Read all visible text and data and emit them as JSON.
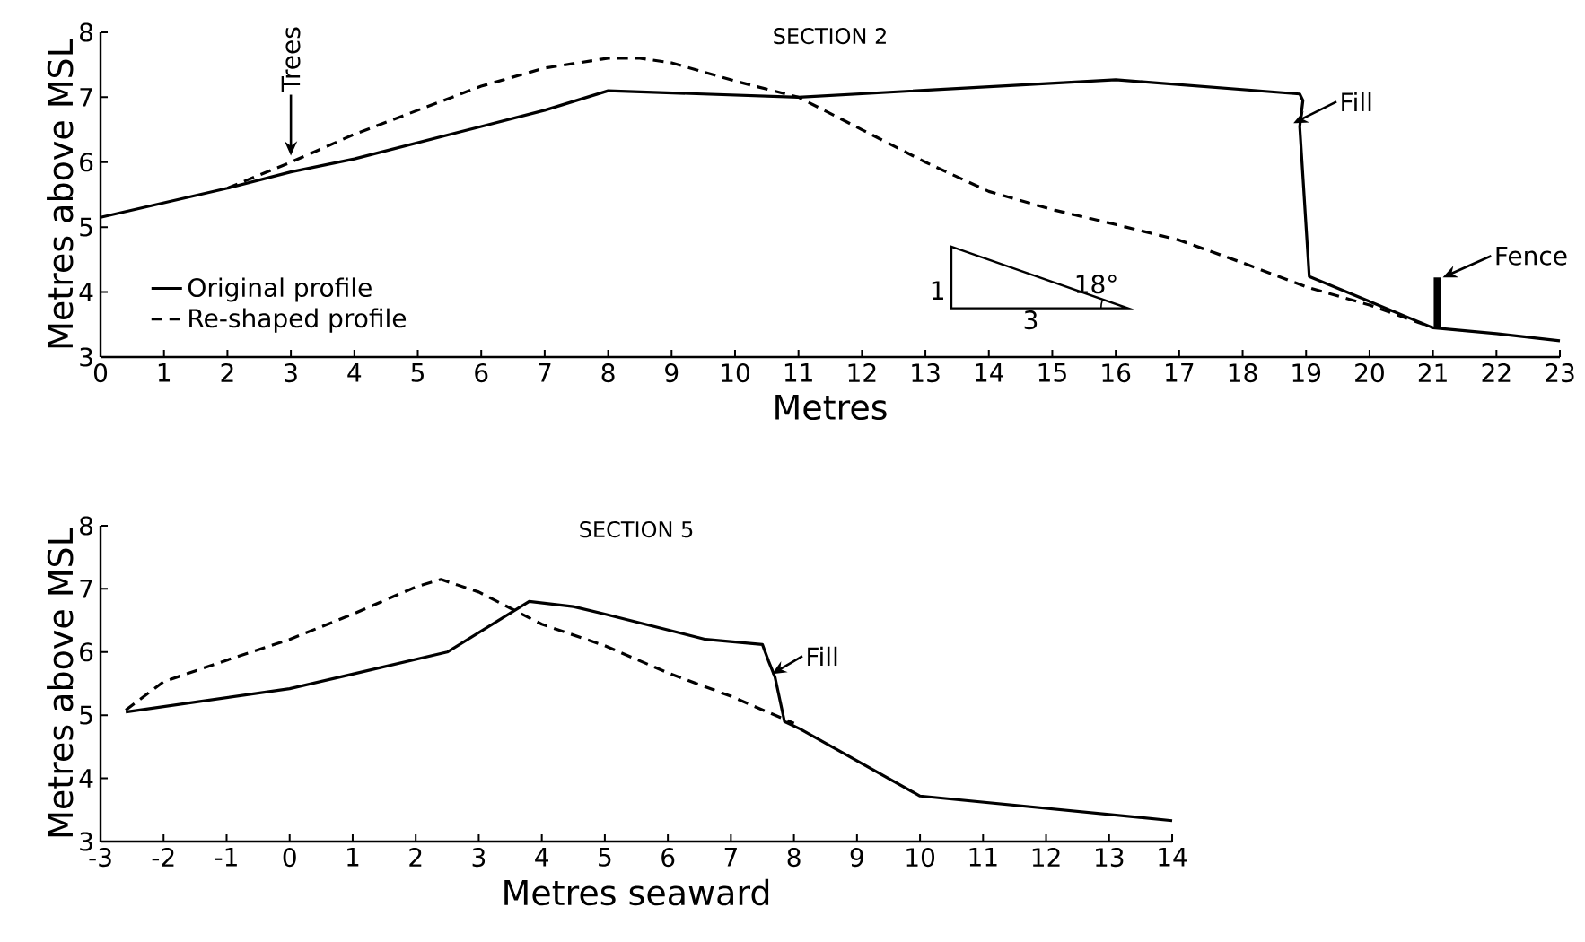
{
  "chart_data": [
    {
      "type": "line",
      "title": "SECTION 2",
      "xlabel": "Metres",
      "ylabel": "Metres above MSL",
      "xlim": [
        0,
        23
      ],
      "xticks": [
        0,
        1,
        2,
        3,
        4,
        5,
        6,
        7,
        8,
        9,
        10,
        11,
        12,
        13,
        14,
        15,
        16,
        17,
        18,
        19,
        20,
        21,
        22,
        23
      ],
      "ylim": [
        3,
        8
      ],
      "yticks": [
        3,
        4,
        5,
        6,
        7,
        8
      ],
      "grid": false,
      "legend": "bottom left",
      "series": [
        {
          "name": "Original profile",
          "color": "#000000",
          "line_style": "solid",
          "x": [
            0,
            2,
            3,
            4,
            5,
            6,
            7,
            8,
            11,
            16,
            18.9,
            18.95,
            18.9,
            19.05,
            21,
            22,
            23
          ],
          "values": [
            5.15,
            5.6,
            5.85,
            6.05,
            6.3,
            6.55,
            6.8,
            7.1,
            7.0,
            7.27,
            7.05,
            6.95,
            6.55,
            4.24,
            3.45,
            3.36,
            3.25
          ]
        },
        {
          "name": "Re-shaped profile",
          "color": "#000000",
          "line_style": "dashed",
          "x": [
            2,
            3,
            4,
            5,
            6,
            7,
            8,
            8.5,
            9,
            10,
            11,
            12,
            13,
            14,
            15,
            16,
            17,
            18,
            19,
            20,
            21
          ],
          "values": [
            5.6,
            6.0,
            6.43,
            6.8,
            7.17,
            7.45,
            7.6,
            7.6,
            7.53,
            7.25,
            7.0,
            6.5,
            6.0,
            5.55,
            5.27,
            5.04,
            4.8,
            4.45,
            4.08,
            3.8,
            3.45
          ]
        }
      ],
      "annotations": [
        {
          "text": "Trees",
          "x": 3,
          "y": 6.1
        },
        {
          "text": "Fill",
          "x": 18.8,
          "y": 6.6
        },
        "Fence",
        "1",
        "3",
        "18°"
      ]
    },
    {
      "type": "line",
      "title": "SECTION 5",
      "xlabel": "Metres seaward",
      "ylabel": "Metres above MSL",
      "xlim": [
        -3,
        14
      ],
      "xticks": [
        -3,
        -2,
        -1,
        0,
        1,
        2,
        3,
        4,
        5,
        6,
        7,
        8,
        9,
        10,
        11,
        12,
        13,
        14
      ],
      "ylim": [
        3,
        8
      ],
      "yticks": [
        3,
        4,
        5,
        6,
        7,
        8
      ],
      "grid": false,
      "series": [
        {
          "color": "#000000",
          "line_style": "solid",
          "x": [
            -2.6,
            0,
            1,
            2.5,
            3.8,
            4.5,
            5,
            6.6,
            7.5,
            7.6,
            7.7,
            7.85,
            8.1,
            10,
            14
          ],
          "values": [
            5.05,
            5.42,
            5.65,
            6.0,
            6.8,
            6.72,
            6.6,
            6.2,
            6.12,
            5.85,
            5.6,
            4.9,
            4.78,
            3.72,
            3.33
          ]
        },
        {
          "color": "#000000",
          "line_style": "dashed",
          "x": [
            -2.6,
            -2,
            -1,
            0,
            1,
            2,
            2.4,
            3,
            4,
            5,
            6,
            7,
            8
          ],
          "values": [
            5.08,
            5.53,
            5.87,
            6.2,
            6.6,
            7.03,
            7.15,
            6.95,
            6.44,
            6.1,
            5.67,
            5.3,
            4.87
          ]
        }
      ],
      "annotations": [
        {
          "text": "Fill",
          "x": 7.65,
          "y": 5.65
        }
      ]
    }
  ]
}
